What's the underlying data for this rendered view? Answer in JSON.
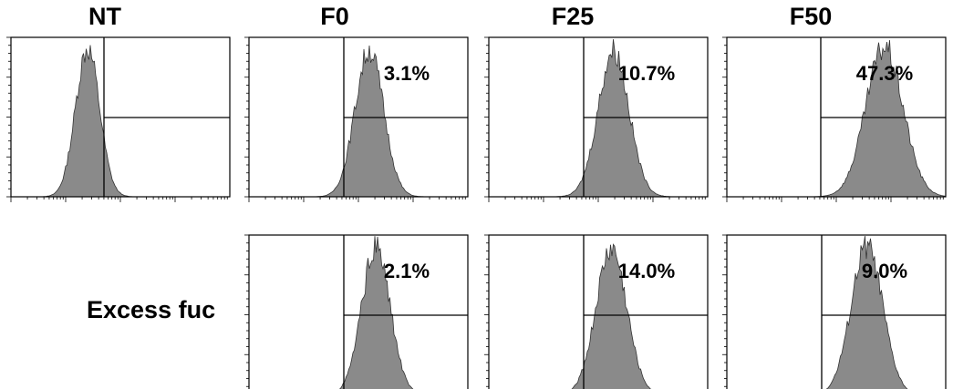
{
  "figure": {
    "column_titles": [
      "NT",
      "F0",
      "F25",
      "F50"
    ],
    "row_label": "Excess fuc",
    "colors": {
      "fill": "#8a8a8a",
      "line": "#000000",
      "background": "#ffffff"
    }
  },
  "chart_data": [
    {
      "type": "area",
      "panel": "NT",
      "row": 1,
      "percent_positive": "",
      "has_percent": false,
      "gate": "after",
      "peak": 0.35,
      "spread": 0.055,
      "peak_height": 0.93
    },
    {
      "type": "area",
      "panel": "F0",
      "row": 1,
      "percent_positive": "3.1%",
      "has_percent": true,
      "gate": "right",
      "peak": 0.55,
      "spread": 0.065,
      "peak_height": 0.92
    },
    {
      "type": "area",
      "panel": "F25",
      "row": 1,
      "percent_positive": "10.7%",
      "has_percent": true,
      "gate": "right",
      "peak": 0.57,
      "spread": 0.07,
      "peak_height": 0.92
    },
    {
      "type": "area",
      "panel": "F50",
      "row": 1,
      "percent_positive": "47.3%",
      "has_percent": true,
      "gate": "center",
      "peak": 0.72,
      "spread": 0.085,
      "peak_height": 0.94
    },
    {
      "type": "area",
      "panel": "F0",
      "row": 2,
      "percent_positive": "2.1%",
      "has_percent": true,
      "gate": "right",
      "peak": 0.58,
      "spread": 0.065,
      "peak_height": 0.92
    },
    {
      "type": "area",
      "panel": "F25",
      "row": 2,
      "percent_positive": "14.0%",
      "has_percent": true,
      "gate": "right",
      "peak": 0.56,
      "spread": 0.07,
      "peak_height": 0.92
    },
    {
      "type": "area",
      "panel": "F50",
      "row": 2,
      "percent_positive": "9.0%",
      "has_percent": true,
      "gate": "right",
      "peak": 0.64,
      "spread": 0.072,
      "peak_height": 0.93
    }
  ]
}
